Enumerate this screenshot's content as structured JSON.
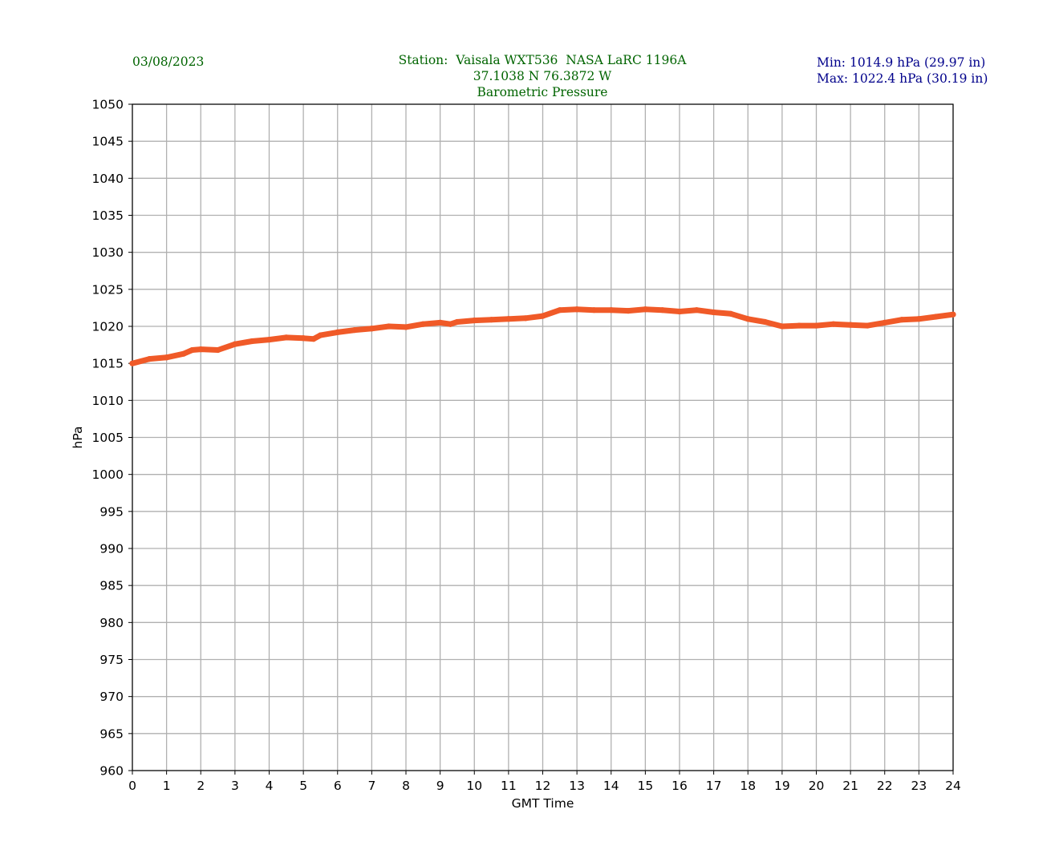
{
  "header": {
    "date": "03/08/2023",
    "station": "Station:  Vaisala WXT536  NASA LaRC 1196A",
    "coords": "37.1038 N 76.3872 W",
    "title": "Barometric Pressure",
    "min": "Min: 1014.9 hPa (29.97 in)",
    "max": "Max: 1022.4 hPa (30.19 in)"
  },
  "colors": {
    "line": "#f05a28",
    "header_text": "#006400",
    "minmax_text": "#00008b",
    "grid": "#b0b0b0"
  },
  "chart_data": {
    "type": "line",
    "xlabel": "GMT Time",
    "ylabel": "hPa",
    "xlim": [
      0,
      24
    ],
    "ylim": [
      960,
      1050
    ],
    "grid": true,
    "x_ticks": [
      "0",
      "1",
      "2",
      "3",
      "4",
      "5",
      "6",
      "7",
      "8",
      "9",
      "10",
      "11",
      "12",
      "13",
      "14",
      "15",
      "16",
      "17",
      "18",
      "19",
      "20",
      "21",
      "22",
      "23",
      "24"
    ],
    "y_ticks": [
      "960",
      "965",
      "970",
      "975",
      "980",
      "985",
      "990",
      "995",
      "1000",
      "1005",
      "1010",
      "1015",
      "1020",
      "1025",
      "1030",
      "1035",
      "1040",
      "1045",
      "1050"
    ],
    "series": [
      {
        "x": [
          0,
          0.5,
          1,
          1.5,
          1.75,
          2,
          2.5,
          3,
          3.5,
          4,
          4.5,
          5,
          5.3,
          5.5,
          6,
          6.5,
          7,
          7.5,
          8,
          8.5,
          9,
          9.3,
          9.5,
          10,
          10.5,
          11,
          11.5,
          12,
          12.5,
          13,
          13.5,
          14,
          14.5,
          15,
          15.5,
          16,
          16.5,
          17,
          17.5,
          18,
          18.5,
          19,
          19.5,
          20,
          20.5,
          21,
          21.5,
          22,
          22.5,
          23,
          23.5,
          24
        ],
        "y": [
          1015.0,
          1015.6,
          1015.8,
          1016.3,
          1016.8,
          1016.9,
          1016.8,
          1017.6,
          1018.0,
          1018.2,
          1018.5,
          1018.4,
          1018.3,
          1018.8,
          1019.2,
          1019.5,
          1019.7,
          1020.0,
          1019.9,
          1020.3,
          1020.5,
          1020.3,
          1020.6,
          1020.8,
          1020.9,
          1021.0,
          1021.1,
          1021.4,
          1022.2,
          1022.3,
          1022.2,
          1022.2,
          1022.1,
          1022.3,
          1022.2,
          1022.0,
          1022.2,
          1021.9,
          1021.7,
          1021.0,
          1020.6,
          1020.0,
          1020.1,
          1020.1,
          1020.3,
          1020.2,
          1020.1,
          1020.5,
          1020.9,
          1021.0,
          1021.3,
          1021.6
        ]
      }
    ]
  }
}
